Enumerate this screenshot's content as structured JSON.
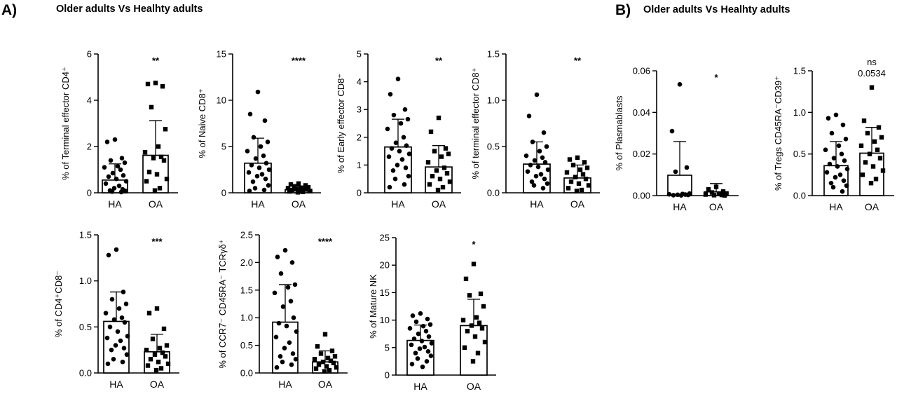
{
  "figure": {
    "panel_a_letter": "A)",
    "panel_a_title": "Older adults Vs Healhty adults",
    "panel_b_letter": "B)",
    "panel_b_title": "Older adults Vs Healhty adults"
  },
  "chart_data": [
    {
      "type": "bar",
      "panel": "A",
      "ylabel": "% of Terminal effector CD4⁺",
      "categories": [
        "HA",
        "OA"
      ],
      "ylim": [
        0,
        6
      ],
      "yticks": [
        "0",
        "2",
        "4",
        "6"
      ],
      "significance": "**",
      "bars": [
        {
          "category": "HA",
          "mean": 0.55,
          "sd_upper": 1.25,
          "marker": "circle",
          "points": [
            2.3,
            2.2,
            1.5,
            1.4,
            1.3,
            1.15,
            1.1,
            1.0,
            0.85,
            0.75,
            0.7,
            0.6,
            0.5,
            0.4,
            0.3,
            0.2,
            0.15,
            0.1,
            0.08,
            0.05,
            0.03
          ]
        },
        {
          "category": "OA",
          "mean": 1.62,
          "sd_upper": 3.12,
          "marker": "square",
          "points": [
            4.75,
            4.7,
            4.6,
            3.7,
            2.75,
            2.0,
            1.75,
            1.55,
            1.5,
            1.4,
            0.9,
            0.8,
            0.6,
            0.5,
            0.2,
            0.1
          ]
        }
      ]
    },
    {
      "type": "bar",
      "panel": "A",
      "ylabel": "% of Naive CD8⁺",
      "categories": [
        "HA",
        "OA"
      ],
      "ylim": [
        0,
        15
      ],
      "yticks": [
        "0",
        "5",
        "10",
        "15"
      ],
      "significance": "****",
      "bars": [
        {
          "category": "HA",
          "mean": 3.2,
          "sd_upper": 5.9,
          "marker": "circle",
          "points": [
            10.9,
            8.5,
            7.8,
            6.0,
            5.5,
            5.0,
            4.5,
            4.0,
            3.7,
            3.2,
            3.0,
            2.7,
            2.5,
            2.2,
            2.0,
            1.8,
            1.5,
            1.2,
            0.8,
            0.5,
            0.3,
            0.2
          ]
        },
        {
          "category": "OA",
          "mean": 0.35,
          "sd_upper": 0.7,
          "marker": "square",
          "points": [
            1.0,
            0.9,
            0.8,
            0.7,
            0.6,
            0.55,
            0.5,
            0.45,
            0.4,
            0.35,
            0.3,
            0.25,
            0.2,
            0.15,
            0.1,
            0.05
          ]
        }
      ]
    },
    {
      "type": "bar",
      "panel": "A",
      "ylabel": "% of Early effector CD8⁺",
      "categories": [
        "HA",
        "OA"
      ],
      "ylim": [
        0,
        5
      ],
      "yticks": [
        "0",
        "1",
        "2",
        "3",
        "4",
        "5"
      ],
      "significance": "**",
      "bars": [
        {
          "category": "HA",
          "mean": 1.65,
          "sd_upper": 2.65,
          "marker": "circle",
          "points": [
            4.1,
            3.55,
            3.0,
            2.8,
            2.65,
            2.5,
            2.3,
            2.0,
            1.8,
            1.7,
            1.6,
            1.5,
            1.4,
            1.3,
            1.2,
            1.0,
            0.9,
            0.8,
            0.6,
            0.5,
            0.3,
            0.2
          ]
        },
        {
          "category": "OA",
          "mean": 0.93,
          "sd_upper": 1.7,
          "marker": "square",
          "points": [
            2.7,
            2.2,
            1.6,
            1.5,
            1.4,
            1.3,
            1.1,
            0.9,
            0.8,
            0.7,
            0.6,
            0.5,
            0.4,
            0.3,
            0.2,
            0.1
          ]
        }
      ]
    },
    {
      "type": "bar",
      "panel": "A",
      "ylabel": "% of terminal effector CD8⁺",
      "categories": [
        "HA",
        "OA"
      ],
      "ylim": [
        0,
        1.5
      ],
      "yticks": [
        "0.0",
        "0.5",
        "1.0",
        "1.5"
      ],
      "significance": "**",
      "bars": [
        {
          "category": "HA",
          "mean": 0.31,
          "sd_upper": 0.55,
          "marker": "circle",
          "points": [
            1.06,
            0.83,
            0.65,
            0.55,
            0.5,
            0.45,
            0.4,
            0.38,
            0.35,
            0.33,
            0.3,
            0.28,
            0.25,
            0.23,
            0.2,
            0.18,
            0.15,
            0.12,
            0.1,
            0.08,
            0.05
          ]
        },
        {
          "category": "OA",
          "mean": 0.16,
          "sd_upper": 0.3,
          "marker": "square",
          "points": [
            0.38,
            0.36,
            0.33,
            0.3,
            0.27,
            0.25,
            0.22,
            0.2,
            0.17,
            0.15,
            0.12,
            0.1,
            0.08,
            0.05,
            0.03,
            0.02
          ]
        }
      ]
    },
    {
      "type": "bar",
      "panel": "A",
      "ylabel": "% of CD4⁺CD8⁻",
      "categories": [
        "HA",
        "OA"
      ],
      "ylim": [
        0,
        1.5
      ],
      "yticks": [
        "0.0",
        "0.5",
        "1.0",
        "1.5"
      ],
      "significance": "***",
      "bars": [
        {
          "category": "HA",
          "mean": 0.56,
          "sd_upper": 0.88,
          "marker": "circle",
          "points": [
            1.34,
            1.28,
            0.88,
            0.8,
            0.75,
            0.7,
            0.65,
            0.6,
            0.58,
            0.55,
            0.5,
            0.45,
            0.4,
            0.38,
            0.35,
            0.3,
            0.27,
            0.25,
            0.2,
            0.15,
            0.12,
            0.1
          ]
        },
        {
          "category": "OA",
          "mean": 0.23,
          "sd_upper": 0.42,
          "marker": "square",
          "points": [
            0.7,
            0.65,
            0.48,
            0.37,
            0.3,
            0.27,
            0.25,
            0.22,
            0.2,
            0.18,
            0.15,
            0.12,
            0.1,
            0.08,
            0.05,
            0.03
          ]
        }
      ]
    },
    {
      "type": "bar",
      "panel": "A",
      "ylabel": "% of CCR7⁻ CD45RA⁻ TCRγδ⁺",
      "categories": [
        "HA",
        "OA"
      ],
      "ylim": [
        0,
        2.5
      ],
      "yticks": [
        "0.0",
        "0.5",
        "1.0",
        "1.5",
        "2.0",
        "2.5"
      ],
      "significance": "****",
      "bars": [
        {
          "category": "HA",
          "mean": 0.92,
          "sd_upper": 1.6,
          "marker": "circle",
          "points": [
            2.22,
            2.1,
            2.0,
            1.8,
            1.6,
            1.55,
            1.45,
            1.3,
            1.2,
            1.0,
            0.9,
            0.85,
            0.75,
            0.65,
            0.55,
            0.45,
            0.35,
            0.3,
            0.25,
            0.2,
            0.15,
            0.1
          ]
        },
        {
          "category": "OA",
          "mean": 0.2,
          "sd_upper": 0.4,
          "marker": "square",
          "points": [
            0.7,
            0.48,
            0.4,
            0.35,
            0.3,
            0.27,
            0.25,
            0.22,
            0.2,
            0.18,
            0.15,
            0.12,
            0.1,
            0.08,
            0.05,
            0.03
          ]
        }
      ]
    },
    {
      "type": "bar",
      "panel": "A",
      "ylabel": "% of Mature NK",
      "categories": [
        "HA",
        "OA"
      ],
      "ylim": [
        0,
        25
      ],
      "yticks": [
        "0",
        "5",
        "10",
        "15",
        "20",
        "25"
      ],
      "significance": "*",
      "bars": [
        {
          "category": "HA",
          "mean": 6.3,
          "sd_upper": 9.1,
          "marker": "circle",
          "points": [
            11.2,
            10.8,
            10.2,
            9.7,
            9.2,
            8.9,
            8.5,
            8.0,
            7.5,
            7.0,
            6.6,
            6.2,
            5.8,
            5.5,
            5.1,
            4.8,
            4.3,
            4.0,
            3.5,
            3.0,
            2.5,
            2.0,
            1.5
          ]
        },
        {
          "category": "OA",
          "mean": 9.0,
          "sd_upper": 13.8,
          "marker": "square",
          "points": [
            20.2,
            17.5,
            14.8,
            14.5,
            12.5,
            10.5,
            10.0,
            9.5,
            9.0,
            8.5,
            8.0,
            7.0,
            6.0,
            5.0,
            4.0,
            2.5
          ]
        }
      ]
    },
    {
      "type": "bar",
      "panel": "B",
      "ylabel": "% of Plasmablasts",
      "categories": [
        "HA",
        "OA"
      ],
      "ylim": [
        0,
        0.06
      ],
      "yticks": [
        "0.00",
        "0.02",
        "0.04",
        "0.06"
      ],
      "significance": "*",
      "bars": [
        {
          "category": "HA",
          "mean": 0.0098,
          "sd_upper": 0.026,
          "marker": "circle",
          "points": [
            0.0535,
            0.031,
            0.0135,
            0.0115,
            0.001,
            0.0008,
            0.0006,
            0.0005,
            0.0004,
            0.0003,
            0.0002,
            0.0001
          ]
        },
        {
          "category": "OA",
          "mean": 0.0018,
          "sd_upper": 0.0058,
          "marker": "square",
          "points": [
            0.0042,
            0.003,
            0.002,
            0.0015,
            0.001,
            0.0008,
            0.0005,
            0.0003,
            0.0002,
            0.0001
          ]
        }
      ]
    },
    {
      "type": "bar",
      "panel": "B",
      "ylabel": "% of Tregs CD45RA⁻CD39⁺",
      "categories": [
        "HA",
        "OA"
      ],
      "ylim": [
        0,
        1.5
      ],
      "yticks": [
        "0.0",
        "0.5",
        "1.0",
        "1.5"
      ],
      "significance": "ns",
      "p_value": "0.0534",
      "bars": [
        {
          "category": "HA",
          "mean": 0.36,
          "sd_upper": 0.65,
          "marker": "circle",
          "points": [
            0.97,
            0.93,
            0.85,
            0.75,
            0.68,
            0.6,
            0.55,
            0.5,
            0.45,
            0.42,
            0.38,
            0.35,
            0.32,
            0.28,
            0.25,
            0.22,
            0.18,
            0.15,
            0.12,
            0.1,
            0.05
          ]
        },
        {
          "category": "OA",
          "mean": 0.51,
          "sd_upper": 0.82,
          "marker": "square",
          "points": [
            1.3,
            0.9,
            0.82,
            0.75,
            0.7,
            0.65,
            0.6,
            0.55,
            0.5,
            0.45,
            0.4,
            0.35,
            0.3,
            0.25,
            0.2,
            0.15
          ]
        }
      ]
    }
  ]
}
